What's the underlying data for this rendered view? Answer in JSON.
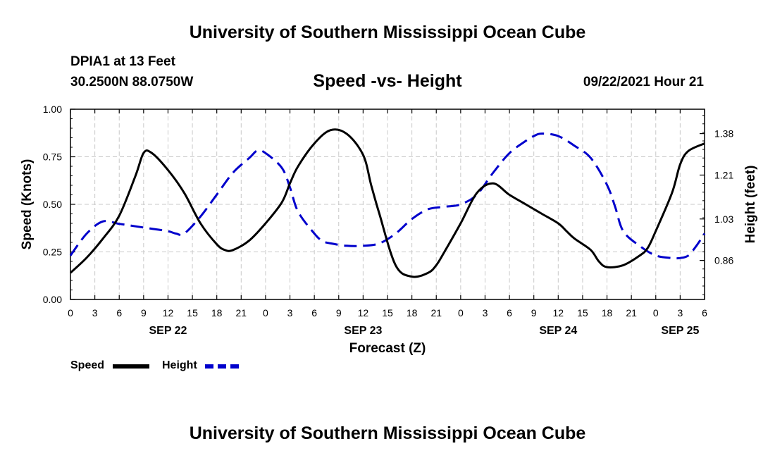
{
  "header": {
    "title": "University of Southern Mississippi Ocean Cube",
    "station": "DPIA1 at 13 Feet",
    "coordinates": "30.2500N  88.0750W",
    "chart_title": "Speed -vs- Height",
    "datetime": "09/22/2021 Hour 21"
  },
  "footer": {
    "title": "University of Southern Mississippi Ocean Cube"
  },
  "legend": {
    "items": [
      {
        "label": "Speed",
        "color": "#000000",
        "style": "solid"
      },
      {
        "label": "Height",
        "color": "#0000cc",
        "style": "dashed"
      }
    ]
  },
  "chart_data": {
    "type": "line",
    "title": "Speed -vs- Height",
    "xlabel": "Forecast (Z)",
    "ylabel": "Speed (Knots)",
    "y2label": "Height (feet)",
    "x_unit": "hours since 2021-09-22 00Z",
    "xlim": [
      0,
      78
    ],
    "ylim": [
      0,
      1
    ],
    "y2lim": [
      0.7,
      1.48
    ],
    "grid": true,
    "x_ticks": [
      0,
      3,
      6,
      9,
      12,
      15,
      18,
      21,
      24,
      27,
      30,
      33,
      36,
      39,
      42,
      45,
      48,
      51,
      54,
      57,
      60,
      63,
      66,
      69,
      72,
      75,
      78
    ],
    "x_tick_labels": [
      "0",
      "3",
      "6",
      "9",
      "12",
      "15",
      "18",
      "21",
      "0",
      "3",
      "6",
      "9",
      "12",
      "15",
      "18",
      "21",
      "0",
      "3",
      "6",
      "9",
      "12",
      "15",
      "18",
      "21",
      "0",
      "3",
      "6"
    ],
    "date_labels": [
      {
        "x": 12,
        "label": "SEP 22"
      },
      {
        "x": 36,
        "label": "SEP 23"
      },
      {
        "x": 60,
        "label": "SEP 24"
      },
      {
        "x": 75,
        "label": "SEP 25"
      }
    ],
    "y_ticks": [
      0.0,
      0.25,
      0.5,
      0.75,
      1.0
    ],
    "y_tick_labels": [
      "0.00",
      "0.25",
      "0.50",
      "0.75",
      "1.00"
    ],
    "y2_ticks": [
      0.86,
      1.03,
      1.21,
      1.38
    ],
    "y2_tick_labels": [
      "0.86",
      "1.03",
      "1.21",
      "1.38"
    ],
    "series": [
      {
        "name": "Speed",
        "axis": "left",
        "x": [
          0,
          2,
          4,
          6,
          8,
          9,
          10,
          12,
          14,
          16,
          18,
          19,
          20,
          22,
          24,
          26,
          27,
          28,
          30,
          32,
          34,
          36,
          37,
          38,
          40,
          42,
          44,
          45,
          46,
          48,
          50,
          52,
          54,
          56,
          58,
          60,
          61,
          62,
          64,
          65,
          66,
          68,
          70,
          71,
          72,
          74,
          75,
          76,
          78
        ],
        "values": [
          0.14,
          0.22,
          0.32,
          0.44,
          0.65,
          0.77,
          0.77,
          0.68,
          0.56,
          0.4,
          0.29,
          0.26,
          0.26,
          0.31,
          0.4,
          0.51,
          0.61,
          0.7,
          0.82,
          0.89,
          0.87,
          0.76,
          0.6,
          0.45,
          0.18,
          0.12,
          0.14,
          0.18,
          0.25,
          0.4,
          0.56,
          0.61,
          0.55,
          0.5,
          0.45,
          0.4,
          0.36,
          0.32,
          0.26,
          0.2,
          0.17,
          0.18,
          0.23,
          0.27,
          0.36,
          0.56,
          0.71,
          0.78,
          0.82
        ]
      },
      {
        "name": "Height",
        "axis": "right",
        "x": [
          0,
          2,
          4,
          6,
          8,
          10,
          12,
          13,
          14,
          16,
          18,
          20,
          22,
          23,
          24,
          26,
          27,
          28,
          30,
          31,
          32,
          34,
          36,
          38,
          40,
          42,
          44,
          46,
          48,
          50,
          52,
          54,
          56,
          57,
          58,
          60,
          62,
          64,
          66,
          67,
          68,
          70,
          72,
          74,
          75,
          76,
          77,
          78
        ],
        "values": [
          0.88,
          0.97,
          1.02,
          1.01,
          1.0,
          0.99,
          0.98,
          0.97,
          0.97,
          1.04,
          1.13,
          1.22,
          1.28,
          1.31,
          1.3,
          1.24,
          1.16,
          1.06,
          0.97,
          0.94,
          0.93,
          0.92,
          0.92,
          0.93,
          0.97,
          1.03,
          1.07,
          1.08,
          1.09,
          1.13,
          1.22,
          1.3,
          1.35,
          1.37,
          1.38,
          1.37,
          1.33,
          1.28,
          1.17,
          1.08,
          0.98,
          0.92,
          0.88,
          0.87,
          0.87,
          0.88,
          0.92,
          0.97
        ]
      }
    ]
  }
}
